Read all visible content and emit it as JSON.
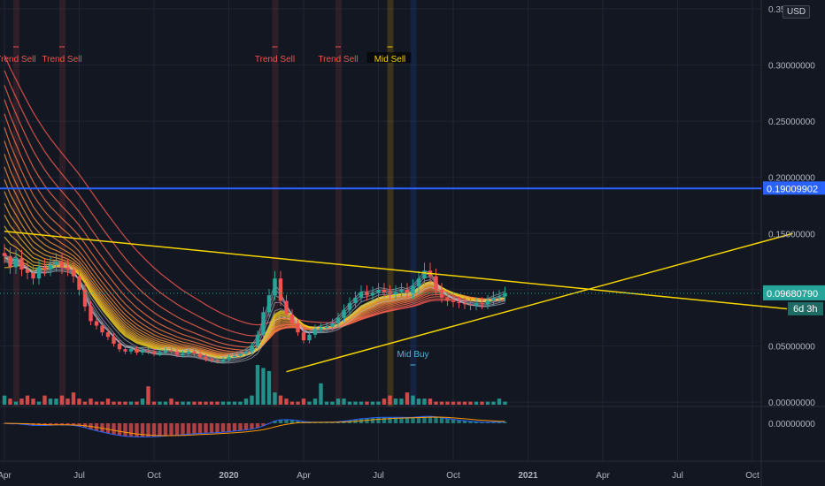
{
  "currency": "USD",
  "chart_data": {
    "type": "candlestick",
    "y_axis": {
      "ticks": [
        "0.35",
        "0.30000000",
        "0.25000000",
        "0.20000000",
        "0.15000000",
        "0.10000000",
        "0.05000000",
        "0.00000000"
      ],
      "tick_values": [
        0.35,
        0.3,
        0.25,
        0.2,
        0.15,
        0.1,
        0.05,
        0.0
      ],
      "ylim": [
        0.0,
        0.35
      ]
    },
    "macd_axis": {
      "tick": "0.00000000"
    },
    "x_axis": {
      "ticks": [
        "Apr",
        "Jul",
        "Oct",
        "2020",
        "Apr",
        "Jul",
        "Oct",
        "2021",
        "Apr",
        "Jul",
        "Oct"
      ],
      "bold": [
        false,
        false,
        false,
        true,
        false,
        false,
        false,
        true,
        false,
        false,
        false
      ],
      "tick_index": [
        0,
        13,
        26,
        39,
        52,
        65,
        78,
        91,
        104,
        117,
        130
      ]
    },
    "horizontal_line": {
      "value": 0.19009902,
      "label": "0.19009902",
      "color": "#2962ff"
    },
    "last_price": {
      "value": 0.0968079,
      "label": "0.09680790",
      "color": "#26a69a"
    },
    "countdown": "6d 3h",
    "trendlines": [
      {
        "name": "descending-resistance",
        "from": [
          0,
          0.152
        ],
        "to": [
          136,
          0.083
        ],
        "color": "#f5d300"
      },
      {
        "name": "ascending-support",
        "from": [
          49,
          0.027
        ],
        "to": [
          137,
          0.15
        ],
        "color": "#f5d300"
      }
    ],
    "signals": [
      {
        "label": "Trend Sell",
        "index": 2,
        "kind": "sell"
      },
      {
        "label": "Trend Sell",
        "index": 10,
        "kind": "sell"
      },
      {
        "label": "Trend Sell",
        "index": 47,
        "kind": "sell"
      },
      {
        "label": "Trend Sell",
        "index": 58,
        "kind": "sell"
      },
      {
        "label": "Mid Sell",
        "index": 67,
        "kind": "midsell"
      },
      {
        "label": "Mid Buy",
        "index": 71,
        "kind": "midbuy"
      }
    ],
    "closes": [
      0.13,
      0.12,
      0.128,
      0.118,
      0.115,
      0.11,
      0.12,
      0.118,
      0.122,
      0.125,
      0.12,
      0.118,
      0.112,
      0.1,
      0.085,
      0.072,
      0.068,
      0.062,
      0.058,
      0.052,
      0.047,
      0.045,
      0.047,
      0.044,
      0.046,
      0.045,
      0.043,
      0.044,
      0.046,
      0.045,
      0.042,
      0.043,
      0.045,
      0.043,
      0.04,
      0.038,
      0.037,
      0.036,
      0.038,
      0.04,
      0.041,
      0.043,
      0.045,
      0.05,
      0.06,
      0.08,
      0.095,
      0.11,
      0.09,
      0.078,
      0.07,
      0.062,
      0.055,
      0.06,
      0.065,
      0.066,
      0.067,
      0.07,
      0.075,
      0.082,
      0.088,
      0.093,
      0.098,
      0.095,
      0.097,
      0.1,
      0.098,
      0.096,
      0.098,
      0.1,
      0.097,
      0.103,
      0.11,
      0.117,
      0.112,
      0.1,
      0.093,
      0.09,
      0.089,
      0.088,
      0.087,
      0.086,
      0.088,
      0.087,
      0.09,
      0.093,
      0.094,
      0.0968
    ],
    "volumes": [
      3,
      2,
      1,
      2,
      3,
      2,
      1,
      3,
      2,
      2,
      3,
      2,
      4,
      2,
      1,
      2,
      1,
      1,
      2,
      1,
      1,
      1,
      1,
      1,
      2,
      6,
      1,
      1,
      1,
      2,
      1,
      1,
      1,
      1,
      1,
      1,
      1,
      1,
      1,
      1,
      1,
      1,
      2,
      3,
      13,
      12,
      11,
      4,
      3,
      2,
      1,
      1,
      2,
      1,
      2,
      7,
      1,
      1,
      2,
      2,
      1,
      1,
      1,
      1,
      1,
      1,
      2,
      3,
      2,
      2,
      4,
      3,
      2,
      2,
      2,
      1,
      1,
      1,
      1,
      1,
      1,
      1,
      1,
      1,
      1,
      1,
      2,
      1
    ],
    "ema_ribbon_count": 18,
    "grey_ribbon_count": 6
  }
}
